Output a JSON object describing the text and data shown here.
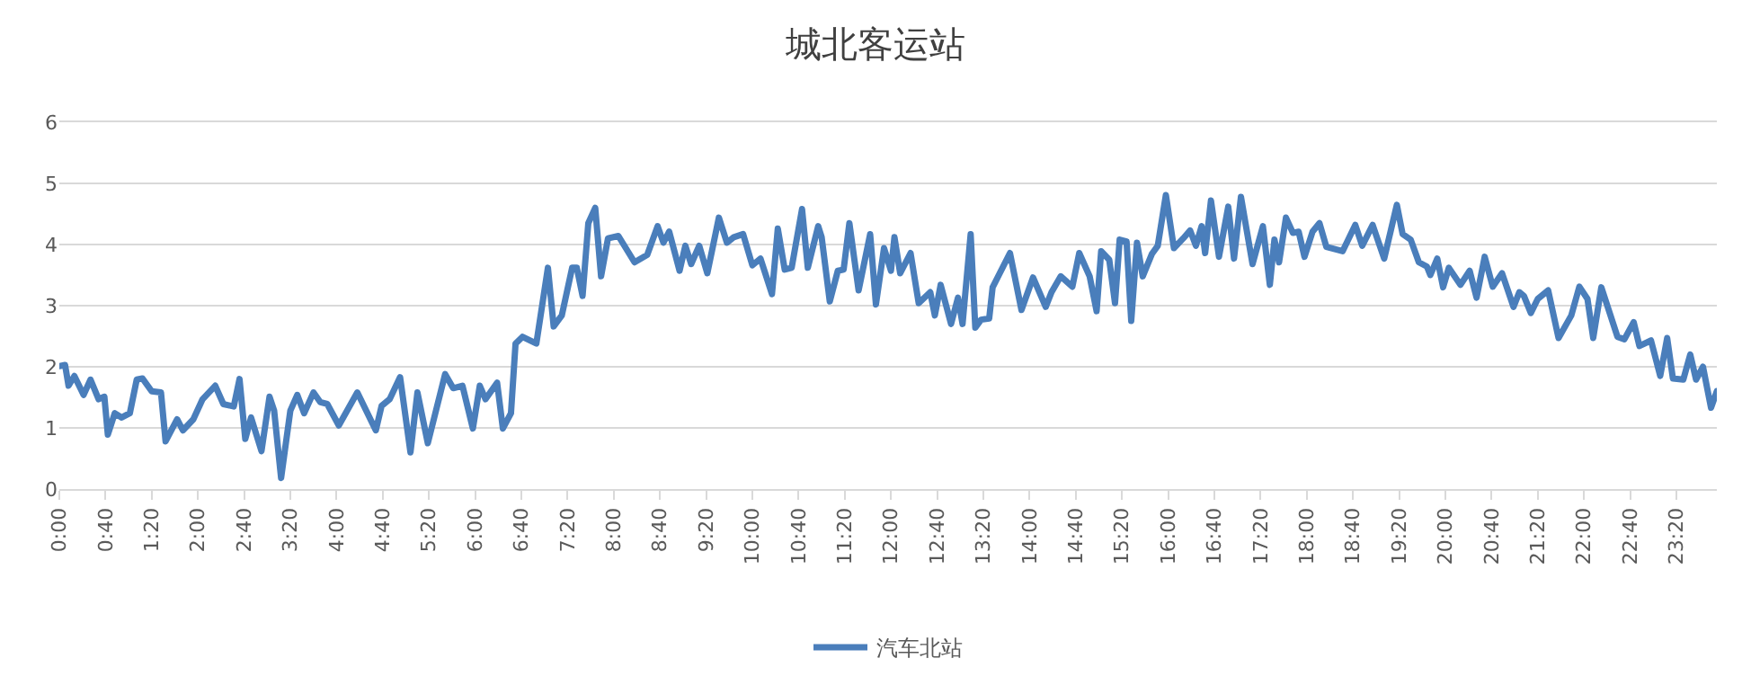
{
  "chart_data": {
    "type": "line",
    "title": "城北客运站",
    "x": [
      0,
      0.083,
      0.133,
      0.217,
      0.35,
      0.45,
      0.567,
      0.65,
      0.7,
      0.8,
      0.9,
      1.017,
      1.117,
      1.2,
      1.333,
      1.467,
      1.533,
      1.7,
      1.783,
      1.933,
      2.067,
      2.25,
      2.367,
      2.517,
      2.6,
      2.683,
      2.767,
      2.917,
      3.033,
      3.1,
      3.2,
      3.333,
      3.433,
      3.533,
      3.667,
      3.767,
      3.867,
      4.033,
      4.3,
      4.567,
      4.65,
      4.767,
      4.917,
      5.067,
      5.167,
      5.317,
      5.567,
      5.683,
      5.817,
      5.967,
      6.067,
      6.15,
      6.317,
      6.4,
      6.517,
      6.583,
      6.683,
      6.883,
      7.05,
      7.133,
      7.25,
      7.4,
      7.467,
      7.55,
      7.633,
      7.733,
      7.817,
      7.917,
      8.067,
      8.3,
      8.483,
      8.633,
      8.717,
      8.8,
      8.95,
      9.033,
      9.117,
      9.233,
      9.35,
      9.517,
      9.633,
      9.733,
      9.867,
      10.0,
      10.117,
      10.283,
      10.367,
      10.467,
      10.567,
      10.717,
      10.8,
      10.95,
      11.0,
      11.117,
      11.233,
      11.317,
      11.4,
      11.533,
      11.7,
      11.783,
      11.9,
      12.0,
      12.05,
      12.133,
      12.283,
      12.4,
      12.567,
      12.633,
      12.717,
      12.867,
      12.967,
      13.033,
      13.15,
      13.217,
      13.3,
      13.417,
      13.467,
      13.717,
      13.883,
      14.05,
      14.233,
      14.317,
      14.45,
      14.617,
      14.717,
      14.867,
      14.967,
      15.033,
      15.15,
      15.233,
      15.3,
      15.4,
      15.467,
      15.55,
      15.633,
      15.767,
      15.85,
      15.967,
      16.083,
      16.217,
      16.317,
      16.4,
      16.483,
      16.533,
      16.617,
      16.733,
      16.867,
      16.95,
      17.05,
      17.217,
      17.367,
      17.467,
      17.533,
      17.6,
      17.7,
      17.8,
      17.883,
      17.967,
      18.083,
      18.183,
      18.283,
      18.517,
      18.7,
      18.8,
      18.95,
      19.117,
      19.3,
      19.383,
      19.5,
      19.617,
      19.733,
      19.783,
      19.883,
      19.967,
      20.05,
      20.217,
      20.35,
      20.45,
      20.567,
      20.683,
      20.817,
      20.983,
      21.067,
      21.133,
      21.233,
      21.333,
      21.483,
      21.633,
      21.817,
      21.933,
      22.05,
      22.133,
      22.25,
      22.483,
      22.583,
      22.717,
      22.8,
      22.967,
      23.1,
      23.2,
      23.283,
      23.433,
      23.533,
      23.617,
      23.717,
      23.833,
      23.917
    ],
    "series": [
      {
        "name": "汽车北站",
        "color": "#4a7ebb",
        "values": [
          2.01,
          2.03,
          1.69,
          1.85,
          1.54,
          1.79,
          1.47,
          1.51,
          0.89,
          1.24,
          1.17,
          1.24,
          1.79,
          1.81,
          1.6,
          1.58,
          0.78,
          1.14,
          0.96,
          1.14,
          1.47,
          1.69,
          1.39,
          1.35,
          1.8,
          0.82,
          1.17,
          0.62,
          1.51,
          1.28,
          0.18,
          1.28,
          1.54,
          1.24,
          1.58,
          1.42,
          1.39,
          1.04,
          1.58,
          0.96,
          1.36,
          1.47,
          1.83,
          0.6,
          1.58,
          0.75,
          1.88,
          1.65,
          1.69,
          0.99,
          1.69,
          1.47,
          1.74,
          0.99,
          1.24,
          2.38,
          2.49,
          2.38,
          3.62,
          2.66,
          2.84,
          3.62,
          3.62,
          3.16,
          4.35,
          4.6,
          3.48,
          4.1,
          4.14,
          3.71,
          3.83,
          4.3,
          4.03,
          4.21,
          3.57,
          3.98,
          3.68,
          3.98,
          3.53,
          4.44,
          4.03,
          4.12,
          4.17,
          3.66,
          3.77,
          3.19,
          4.26,
          3.59,
          3.62,
          4.58,
          3.62,
          4.3,
          4.12,
          3.07,
          3.57,
          3.59,
          4.35,
          3.25,
          4.17,
          3.02,
          3.94,
          3.57,
          4.12,
          3.53,
          3.86,
          3.04,
          3.22,
          2.84,
          3.34,
          2.7,
          3.13,
          2.7,
          4.17,
          2.64,
          2.77,
          2.79,
          3.3,
          3.86,
          2.93,
          3.46,
          2.98,
          3.22,
          3.48,
          3.31,
          3.86,
          3.48,
          2.91,
          3.89,
          3.75,
          3.04,
          4.08,
          4.05,
          2.75,
          4.03,
          3.48,
          3.85,
          3.98,
          4.81,
          3.94,
          4.1,
          4.23,
          3.98,
          4.3,
          3.86,
          4.72,
          3.8,
          4.62,
          3.77,
          4.78,
          3.68,
          4.3,
          3.34,
          4.08,
          3.71,
          4.44,
          4.19,
          4.21,
          3.8,
          4.21,
          4.35,
          3.96,
          3.89,
          4.32,
          3.98,
          4.32,
          3.77,
          4.65,
          4.17,
          4.08,
          3.71,
          3.64,
          3.5,
          3.77,
          3.3,
          3.62,
          3.34,
          3.57,
          3.13,
          3.8,
          3.31,
          3.53,
          2.98,
          3.22,
          3.16,
          2.88,
          3.11,
          3.25,
          2.47,
          2.84,
          3.31,
          3.11,
          2.47,
          3.3,
          2.49,
          2.45,
          2.73,
          2.34,
          2.43,
          1.85,
          2.47,
          1.81,
          1.79,
          2.2,
          1.79,
          2.0,
          1.33,
          1.6
        ]
      }
    ],
    "xlim": [
      0,
      23.917
    ],
    "xticks": [
      {
        "value": 0,
        "label": "0:00"
      },
      {
        "value": 0.667,
        "label": "0:40"
      },
      {
        "value": 1.333,
        "label": "1:20"
      },
      {
        "value": 2,
        "label": "2:00"
      },
      {
        "value": 2.667,
        "label": "2:40"
      },
      {
        "value": 3.333,
        "label": "3:20"
      },
      {
        "value": 4,
        "label": "4:00"
      },
      {
        "value": 4.667,
        "label": "4:40"
      },
      {
        "value": 5.333,
        "label": "5:20"
      },
      {
        "value": 6,
        "label": "6:00"
      },
      {
        "value": 6.667,
        "label": "6:40"
      },
      {
        "value": 7.333,
        "label": "7:20"
      },
      {
        "value": 8,
        "label": "8:00"
      },
      {
        "value": 8.667,
        "label": "8:40"
      },
      {
        "value": 9.333,
        "label": "9:20"
      },
      {
        "value": 10,
        "label": "10:00"
      },
      {
        "value": 10.667,
        "label": "10:40"
      },
      {
        "value": 11.333,
        "label": "11:20"
      },
      {
        "value": 12,
        "label": "12:00"
      },
      {
        "value": 12.667,
        "label": "12:40"
      },
      {
        "value": 13.333,
        "label": "13:20"
      },
      {
        "value": 14,
        "label": "14:00"
      },
      {
        "value": 14.667,
        "label": "14:40"
      },
      {
        "value": 15.333,
        "label": "15:20"
      },
      {
        "value": 16,
        "label": "16:00"
      },
      {
        "value": 16.667,
        "label": "16:40"
      },
      {
        "value": 17.333,
        "label": "17:20"
      },
      {
        "value": 18,
        "label": "18:00"
      },
      {
        "value": 18.667,
        "label": "18:40"
      },
      {
        "value": 19.333,
        "label": "19:20"
      },
      {
        "value": 20,
        "label": "20:00"
      },
      {
        "value": 20.667,
        "label": "20:40"
      },
      {
        "value": 21.333,
        "label": "21:20"
      },
      {
        "value": 22,
        "label": "22:00"
      },
      {
        "value": 22.667,
        "label": "22:40"
      },
      {
        "value": 23.333,
        "label": "23:20"
      }
    ],
    "ylim": [
      0,
      6
    ],
    "yticks": [
      0,
      1,
      2,
      3,
      4,
      5,
      6
    ],
    "grid": "y",
    "legend": "bottom",
    "marker": "none",
    "line_style": "solid"
  }
}
